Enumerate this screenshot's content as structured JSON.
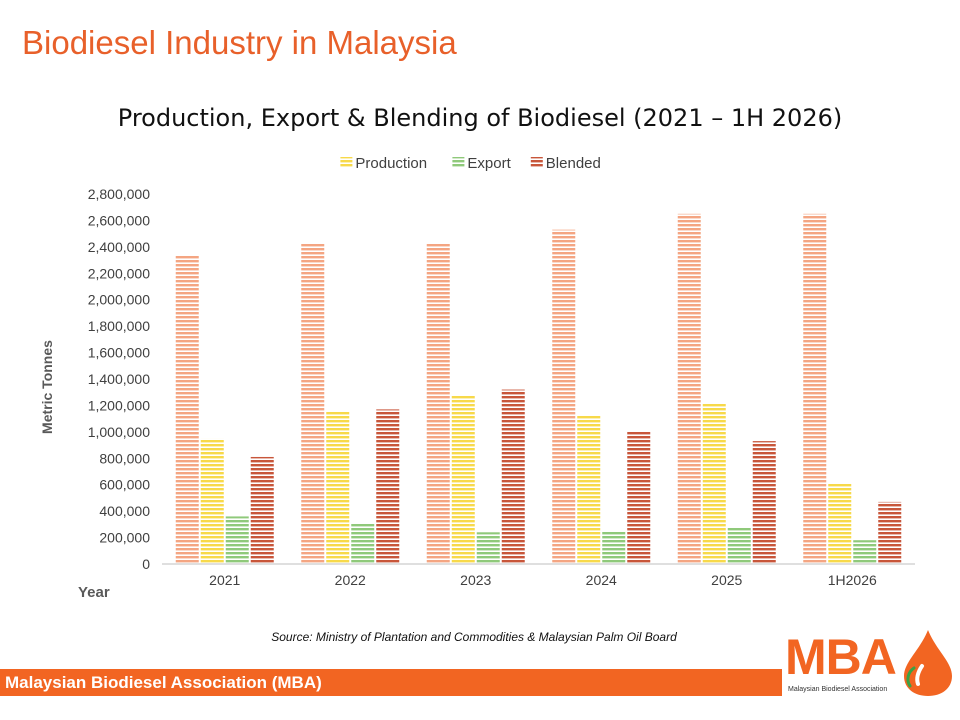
{
  "slide_title": "Biodiesel Industry in Malaysia",
  "source": "Source:  Ministry of Plantation and Commodities & Malaysian Palm Oil Board",
  "footer": "Malaysian Biodiesel Association (MBA)",
  "logo": {
    "text": "MBA",
    "subtitle": "Malaysian Biodiesel Association"
  },
  "colors": {
    "accent": "#f26522",
    "production": "#f7d94a",
    "export": "#8fc97a",
    "blended": "#c8563a",
    "capacity": "#f4a582"
  },
  "chart_data": {
    "type": "bar",
    "title": "Production, Export & Blending of Biodiesel (2021 – 1H 2026)",
    "xlabel": "Year",
    "ylabel": "Metric Tonnes",
    "ylim": [
      0,
      2800000
    ],
    "yticks": [
      "0",
      "200,000",
      "400,000",
      "600,000",
      "800,000",
      "1,000,000",
      "1,200,000",
      "1,400,000",
      "1,600,000",
      "1,800,000",
      "2,000,000",
      "2,200,000",
      "2,400,000",
      "2,600,000",
      "2,800,000"
    ],
    "categories": [
      "2021",
      "2022",
      "2023",
      "2024",
      "2025",
      "1H2026"
    ],
    "legend_position": "top",
    "series": [
      {
        "name": "",
        "values": [
          2340000,
          2430000,
          2430000,
          2530000,
          2650000,
          2650000
        ],
        "legend": false
      },
      {
        "name": "Production",
        "values": [
          950000,
          1160000,
          1280000,
          1120000,
          1220000,
          610000
        ],
        "legend": true
      },
      {
        "name": "Export",
        "values": [
          360000,
          310000,
          240000,
          250000,
          280000,
          180000
        ],
        "legend": true
      },
      {
        "name": "Blended",
        "values": [
          810000,
          1170000,
          1320000,
          1000000,
          930000,
          470000
        ],
        "legend": true
      }
    ]
  }
}
